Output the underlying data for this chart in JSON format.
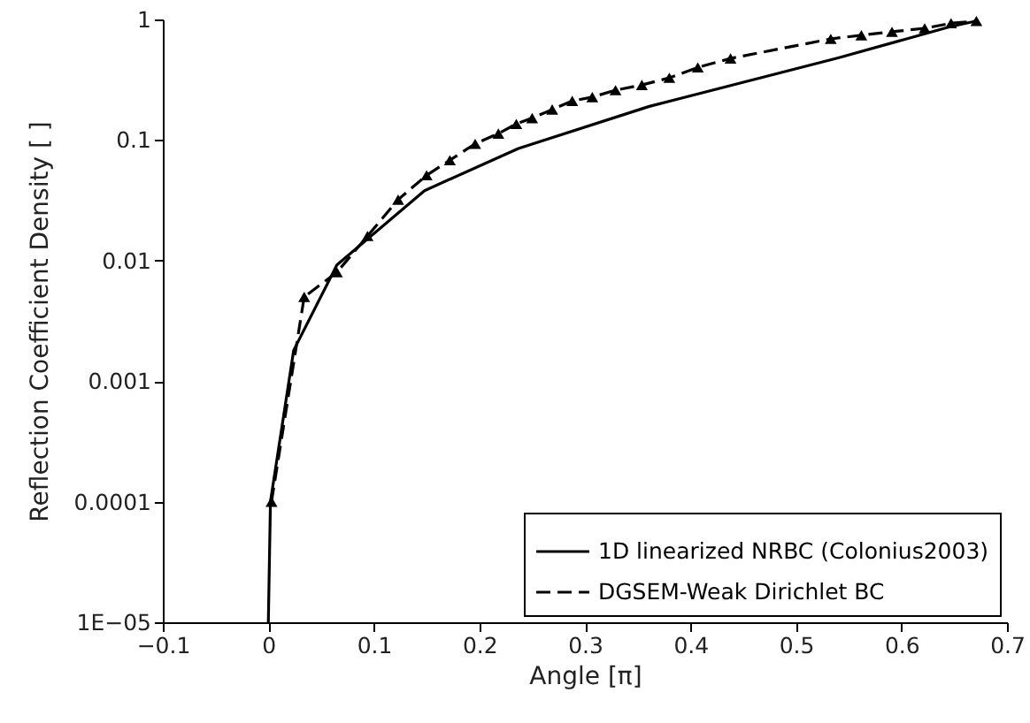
{
  "chart_data": {
    "type": "line",
    "xlabel": "Angle [π]",
    "ylabel": "Reflection Coefficient Density [ ]",
    "log": "y",
    "grid": false,
    "legend": "bottom right",
    "xlim": [
      -0.1,
      0.7
    ],
    "xticks": [
      {
        "value": -0.1,
        "label": "−0.1"
      },
      0,
      0.1,
      0.2,
      0.3,
      0.4,
      0.5,
      0.6,
      0.7
    ],
    "ylim": [
      1e-05,
      1
    ],
    "yticks": [
      {
        "value": 1e-05,
        "label": "1E−05"
      },
      0.0001,
      0.001,
      0.01,
      0.1,
      1
    ],
    "series": [
      {
        "name": "1D linearized NRBC (Colonius2003)",
        "color": "#000000",
        "line_style": "solid",
        "marker": "none",
        "x": [
          0,
          0.002,
          0.024,
          0.065,
          0.148,
          0.237,
          0.361,
          0.54,
          0.646,
          0.671
        ],
        "values": [
          1e-05,
          0.0001,
          0.0018,
          0.0092,
          0.038,
          0.085,
          0.19,
          0.48,
          0.87,
          0.97
        ]
      },
      {
        "name": "DGSEM-Weak Dirichlet BC",
        "color": "#000000",
        "line_style": "dashed",
        "marker": "triangle",
        "x": [
          0.003,
          0.034,
          0.065,
          0.094,
          0.123,
          0.15,
          0.172,
          0.196,
          0.218,
          0.235,
          0.25,
          0.269,
          0.288,
          0.307,
          0.329,
          0.354,
          0.38,
          0.407,
          0.438,
          0.533,
          0.562,
          0.591,
          0.622,
          0.647,
          0.671
        ],
        "values": [
          0.0001,
          0.005,
          0.008,
          0.016,
          0.032,
          0.051,
          0.068,
          0.093,
          0.113,
          0.136,
          0.152,
          0.179,
          0.211,
          0.227,
          0.259,
          0.286,
          0.328,
          0.4,
          0.475,
          0.69,
          0.74,
          0.79,
          0.845,
          0.93,
          0.97
        ]
      }
    ]
  }
}
